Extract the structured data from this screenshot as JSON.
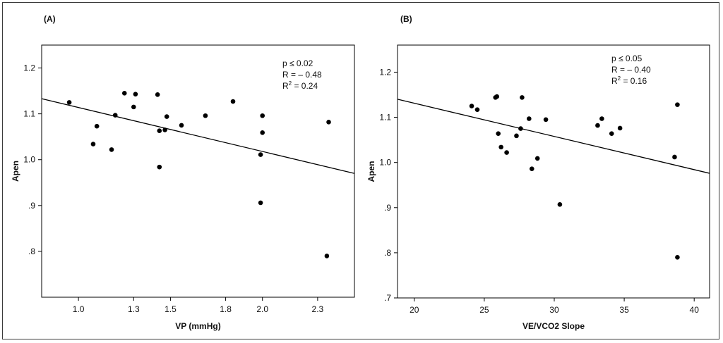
{
  "chart_data": [
    {
      "panel_label": "(A)",
      "type": "scatter",
      "xlabel": "VP (mmHg)",
      "ylabel": "Apen",
      "xlim": [
        0.8,
        2.5
      ],
      "ylim": [
        0.7,
        1.25
      ],
      "xticks": [
        1.0,
        1.3,
        1.5,
        1.8,
        2.0,
        2.3
      ],
      "xtick_labels": [
        "1.0",
        "1.3",
        "1.5",
        "1.8",
        "2.0",
        "2.3"
      ],
      "yticks": [
        0.8,
        0.9,
        1.0,
        1.1,
        1.2
      ],
      "ytick_labels": [
        ".8",
        ".9",
        "1.0",
        "1.1",
        "1.2"
      ],
      "stats": [
        "p ≤ 0.02",
        "R = – 0.48",
        "R² = 0.24"
      ],
      "regression": {
        "x": [
          0.8,
          2.5
        ],
        "y": [
          1.133,
          0.97
        ]
      },
      "points": [
        {
          "x": 0.95,
          "y": 1.125
        },
        {
          "x": 1.08,
          "y": 1.034
        },
        {
          "x": 1.1,
          "y": 1.073
        },
        {
          "x": 1.18,
          "y": 1.022
        },
        {
          "x": 1.2,
          "y": 1.097
        },
        {
          "x": 1.25,
          "y": 1.145
        },
        {
          "x": 1.3,
          "y": 1.115
        },
        {
          "x": 1.31,
          "y": 1.143
        },
        {
          "x": 1.43,
          "y": 1.142
        },
        {
          "x": 1.44,
          "y": 1.063
        },
        {
          "x": 1.44,
          "y": 0.984
        },
        {
          "x": 1.47,
          "y": 1.065
        },
        {
          "x": 1.48,
          "y": 1.094
        },
        {
          "x": 1.56,
          "y": 1.075
        },
        {
          "x": 1.69,
          "y": 1.096
        },
        {
          "x": 1.84,
          "y": 1.127
        },
        {
          "x": 1.99,
          "y": 1.011
        },
        {
          "x": 1.99,
          "y": 0.906
        },
        {
          "x": 2.0,
          "y": 1.096
        },
        {
          "x": 2.0,
          "y": 1.059
        },
        {
          "x": 2.35,
          "y": 0.79
        },
        {
          "x": 2.36,
          "y": 1.082
        }
      ]
    },
    {
      "panel_label": "(B)",
      "type": "scatter",
      "xlabel": "VE/VCO2 Slope",
      "ylabel": "Apen",
      "xlim": [
        18.8,
        41.1
      ],
      "ylim": [
        0.7,
        1.26
      ],
      "xticks": [
        20,
        25,
        30,
        35,
        40
      ],
      "xtick_labels": [
        "20",
        "25",
        "30",
        "35",
        "40"
      ],
      "yticks": [
        0.7,
        0.8,
        0.9,
        1.0,
        1.1,
        1.2
      ],
      "ytick_labels": [
        ".7",
        ".8",
        ".9",
        "1.0",
        "1.1",
        "1.2"
      ],
      "stats": [
        "p ≤ 0.05",
        "R = – 0.40",
        "R² = 0.16"
      ],
      "regression": {
        "x": [
          18.8,
          41.1
        ],
        "y": [
          1.14,
          0.976
        ]
      },
      "points": [
        {
          "x": 24.1,
          "y": 1.125
        },
        {
          "x": 24.5,
          "y": 1.117
        },
        {
          "x": 25.8,
          "y": 1.144
        },
        {
          "x": 25.9,
          "y": 1.146
        },
        {
          "x": 26.0,
          "y": 1.064
        },
        {
          "x": 26.2,
          "y": 1.034
        },
        {
          "x": 26.6,
          "y": 1.022
        },
        {
          "x": 27.3,
          "y": 1.059
        },
        {
          "x": 27.6,
          "y": 1.075
        },
        {
          "x": 27.7,
          "y": 1.144
        },
        {
          "x": 28.2,
          "y": 1.097
        },
        {
          "x": 28.4,
          "y": 0.986
        },
        {
          "x": 28.8,
          "y": 1.009
        },
        {
          "x": 29.4,
          "y": 1.095
        },
        {
          "x": 30.4,
          "y": 0.907
        },
        {
          "x": 33.1,
          "y": 1.082
        },
        {
          "x": 33.4,
          "y": 1.097
        },
        {
          "x": 34.1,
          "y": 1.064
        },
        {
          "x": 34.7,
          "y": 1.076
        },
        {
          "x": 38.6,
          "y": 1.012
        },
        {
          "x": 38.8,
          "y": 1.128
        },
        {
          "x": 38.8,
          "y": 0.79
        }
      ]
    }
  ]
}
